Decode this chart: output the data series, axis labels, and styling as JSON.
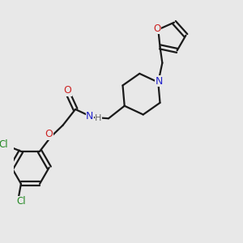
{
  "bg_color": "#e8e8e8",
  "bond_color": "#1a1a1a",
  "N_color": "#2222cc",
  "O_color": "#cc2222",
  "Cl_color": "#228822",
  "H_color": "#666666",
  "figsize": [
    3.0,
    3.0
  ],
  "dpi": 100,
  "xlim": [
    0,
    10
  ],
  "ylim": [
    0,
    10
  ]
}
